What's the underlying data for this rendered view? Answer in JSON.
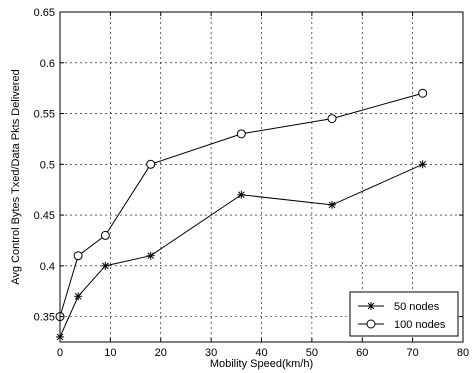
{
  "chart_data": {
    "type": "line",
    "title": "",
    "xlabel": "Mobility Speed(km/h)",
    "ylabel": "Avg Control Bytes Txed/Data Pkts Delivered",
    "xlim": [
      0,
      80
    ],
    "ylim": [
      0.325,
      0.65
    ],
    "xticks": [
      0,
      10,
      20,
      30,
      40,
      50,
      60,
      70,
      80
    ],
    "yticks": [
      0.35,
      0.4,
      0.45,
      0.5,
      0.55,
      0.6,
      0.65
    ],
    "ytick_labels": [
      "0.35",
      "0.4",
      "0.45",
      "0.5",
      "0.55",
      "0.6",
      "0.65"
    ],
    "grid": true,
    "legend_position": "bottom-right",
    "series": [
      {
        "name": "50 nodes",
        "marker": "star",
        "color": "#000000",
        "x": [
          0,
          3.6,
          9,
          18,
          36,
          54,
          72
        ],
        "y": [
          0.33,
          0.37,
          0.4,
          0.41,
          0.47,
          0.46,
          0.5
        ]
      },
      {
        "name": "100 nodes",
        "marker": "circle",
        "color": "#000000",
        "x": [
          0,
          3.6,
          9,
          18,
          36,
          54,
          72
        ],
        "y": [
          0.35,
          0.41,
          0.43,
          0.5,
          0.53,
          0.545,
          0.57
        ]
      }
    ]
  }
}
